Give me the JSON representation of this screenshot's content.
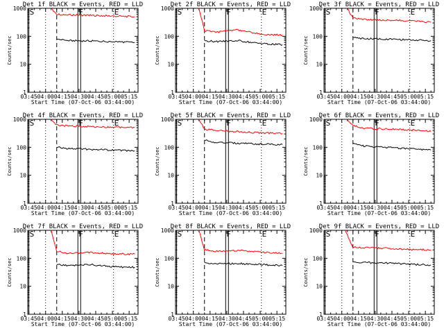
{
  "figure": {
    "background": "#ffffff",
    "event_color": "#000000",
    "lld_color": "#ff0000"
  },
  "chart_data": [
    {
      "type": "line",
      "title": "Det 1f BLACK = Events, RED = LLD",
      "xlabel": "Start Time (07-Oct-06 03:44:00)",
      "ylabel": "Counts/sec",
      "yscale": "log",
      "ylim": [
        1,
        1000
      ],
      "x_ticks": [
        "03:45",
        "04:00",
        "04:15",
        "04:30",
        "04:45",
        "05:00",
        "05:15"
      ],
      "y_ticks": [
        "1",
        "10",
        "100",
        "1000"
      ],
      "markers": [
        {
          "label": "S",
          "time": "03:45",
          "style": "solid"
        },
        {
          "label": "",
          "time": "04:00",
          "style": "dotted"
        },
        {
          "label": "",
          "time": "04:10",
          "style": "dashed"
        },
        {
          "label": "F",
          "time": "04:29",
          "style": "double"
        },
        {
          "label": "E",
          "time": "05:01",
          "style": "dotted"
        }
      ],
      "series": [
        {
          "name": "LLD",
          "color": "#ff0000",
          "x": [
            "04:05",
            "04:10",
            "04:20",
            "04:40",
            "05:00",
            "05:20"
          ],
          "values": [
            1000,
            620,
            590,
            560,
            530,
            500
          ]
        },
        {
          "name": "Events",
          "color": "#000000",
          "x": [
            "04:10",
            "04:20",
            "04:40",
            "05:00",
            "05:20"
          ],
          "values": [
            80,
            70,
            68,
            65,
            60
          ]
        }
      ]
    },
    {
      "type": "line",
      "title": "Det 2f BLACK = Events, RED = LLD",
      "xlabel": "Start Time (07-Oct-06 03:44:00)",
      "ylabel": "Counts/sec",
      "yscale": "log",
      "ylim": [
        1,
        1000
      ],
      "x_ticks": [
        "03:45",
        "04:00",
        "04:15",
        "04:30",
        "04:45",
        "05:00",
        "05:15"
      ],
      "y_ticks": [
        "1",
        "10",
        "100",
        "1000"
      ],
      "markers": [
        {
          "label": "S",
          "time": "03:45",
          "style": "solid"
        },
        {
          "label": "",
          "time": "04:00",
          "style": "dotted"
        },
        {
          "label": "",
          "time": "04:10",
          "style": "dashed"
        },
        {
          "label": "F",
          "time": "04:29",
          "style": "double"
        },
        {
          "label": "E",
          "time": "05:01",
          "style": "dotted"
        }
      ],
      "series": [
        {
          "name": "LLD",
          "color": "#ff0000",
          "x": [
            "04:05",
            "04:10",
            "04:20",
            "04:40",
            "05:00",
            "05:20"
          ],
          "values": [
            1000,
            160,
            140,
            170,
            120,
            110
          ]
        },
        {
          "name": "Events",
          "color": "#000000",
          "x": [
            "04:10",
            "04:20",
            "04:40",
            "05:00",
            "05:20"
          ],
          "values": [
            70,
            65,
            70,
            55,
            50
          ]
        }
      ]
    },
    {
      "type": "line",
      "title": "Det 3f BLACK = Events, RED = LLD",
      "xlabel": "Start Time (07-Oct-06 03:44:00)",
      "ylabel": "Counts/sec",
      "yscale": "log",
      "ylim": [
        1,
        1000
      ],
      "x_ticks": [
        "03:45",
        "04:00",
        "04:15",
        "04:30",
        "04:45",
        "05:00",
        "05:15"
      ],
      "y_ticks": [
        "1",
        "10",
        "100",
        "1000"
      ],
      "markers": [
        {
          "label": "S",
          "time": "03:45",
          "style": "solid"
        },
        {
          "label": "",
          "time": "04:00",
          "style": "dotted"
        },
        {
          "label": "",
          "time": "04:10",
          "style": "dashed"
        },
        {
          "label": "F",
          "time": "04:29",
          "style": "double"
        },
        {
          "label": "E",
          "time": "05:01",
          "style": "dotted"
        }
      ],
      "series": [
        {
          "name": "LLD",
          "color": "#ff0000",
          "x": [
            "04:05",
            "04:10",
            "04:20",
            "04:40",
            "05:00",
            "05:20"
          ],
          "values": [
            1000,
            450,
            400,
            380,
            360,
            320
          ]
        },
        {
          "name": "Events",
          "color": "#000000",
          "x": [
            "04:10",
            "04:20",
            "04:40",
            "05:00",
            "05:20"
          ],
          "values": [
            90,
            82,
            80,
            75,
            70
          ]
        }
      ]
    },
    {
      "type": "line",
      "title": "Det 4f BLACK = Events, RED = LLD",
      "xlabel": "Start Time (07-Oct-06 03:44:00)",
      "ylabel": "Counts/sec",
      "yscale": "log",
      "ylim": [
        1,
        1000
      ],
      "x_ticks": [
        "03:45",
        "04:00",
        "04:15",
        "04:30",
        "04:45",
        "05:00",
        "05:15"
      ],
      "y_ticks": [
        "1",
        "10",
        "100",
        "1000"
      ],
      "markers": [
        {
          "label": "S",
          "time": "03:45",
          "style": "solid"
        },
        {
          "label": "",
          "time": "04:00",
          "style": "dotted"
        },
        {
          "label": "",
          "time": "04:10",
          "style": "dashed"
        },
        {
          "label": "F",
          "time": "04:29",
          "style": "double"
        },
        {
          "label": "E",
          "time": "05:01",
          "style": "dotted"
        }
      ],
      "series": [
        {
          "name": "LLD",
          "color": "#ff0000",
          "x": [
            "04:05",
            "04:10",
            "04:20",
            "04:40",
            "05:00",
            "05:20"
          ],
          "values": [
            1000,
            620,
            580,
            550,
            520,
            500
          ]
        },
        {
          "name": "Events",
          "color": "#000000",
          "x": [
            "04:10",
            "04:20",
            "04:40",
            "05:00",
            "05:20"
          ],
          "values": [
            100,
            90,
            85,
            80,
            75
          ]
        }
      ]
    },
    {
      "type": "line",
      "title": "Det 5f BLACK = Events, RED = LLD",
      "xlabel": "Start Time (07-Oct-06 03:44:00)",
      "ylabel": "Counts/sec",
      "yscale": "log",
      "ylim": [
        1,
        1000
      ],
      "x_ticks": [
        "03:45",
        "04:00",
        "04:15",
        "04:30",
        "04:45",
        "05:00",
        "05:15"
      ],
      "y_ticks": [
        "1",
        "10",
        "100",
        "1000"
      ],
      "markers": [
        {
          "label": "S",
          "time": "03:45",
          "style": "solid"
        },
        {
          "label": "",
          "time": "04:00",
          "style": "dotted"
        },
        {
          "label": "",
          "time": "04:10",
          "style": "dashed"
        },
        {
          "label": "F",
          "time": "04:29",
          "style": "double"
        },
        {
          "label": "E",
          "time": "05:01",
          "style": "dotted"
        }
      ],
      "series": [
        {
          "name": "LLD",
          "color": "#ff0000",
          "x": [
            "04:05",
            "04:10",
            "04:20",
            "04:40",
            "05:00",
            "05:20"
          ],
          "values": [
            1000,
            440,
            400,
            360,
            330,
            310
          ]
        },
        {
          "name": "Events",
          "color": "#000000",
          "x": [
            "04:10",
            "04:20",
            "04:40",
            "05:00",
            "05:20"
          ],
          "values": [
            180,
            150,
            140,
            130,
            125
          ]
        }
      ]
    },
    {
      "type": "line",
      "title": "Det 6f BLACK = Events, RED = LLD",
      "xlabel": "Start Time (07-Oct-06 03:44:00)",
      "ylabel": "Counts/sec",
      "yscale": "log",
      "ylim": [
        1,
        1000
      ],
      "x_ticks": [
        "03:45",
        "04:00",
        "04:15",
        "04:30",
        "04:45",
        "05:00",
        "05:15"
      ],
      "y_ticks": [
        "1",
        "10",
        "100",
        "1000"
      ],
      "markers": [
        {
          "label": "S",
          "time": "03:45",
          "style": "solid"
        },
        {
          "label": "",
          "time": "04:00",
          "style": "dotted"
        },
        {
          "label": "",
          "time": "04:10",
          "style": "dashed"
        },
        {
          "label": "F",
          "time": "04:29",
          "style": "double"
        },
        {
          "label": "E",
          "time": "05:01",
          "style": "dotted"
        }
      ],
      "series": [
        {
          "name": "LLD",
          "color": "#ff0000",
          "x": [
            "04:05",
            "04:10",
            "04:20",
            "04:40",
            "05:00",
            "05:20"
          ],
          "values": [
            1000,
            600,
            480,
            450,
            420,
            370
          ]
        },
        {
          "name": "Events",
          "color": "#000000",
          "x": [
            "04:10",
            "04:20",
            "04:40",
            "05:00",
            "05:20"
          ],
          "values": [
            140,
            110,
            100,
            90,
            80
          ]
        }
      ]
    },
    {
      "type": "line",
      "title": "Det 7f BLACK = Events, RED = LLD",
      "xlabel": "Start Time (07-Oct-06 03:44:00)",
      "ylabel": "Counts/sec",
      "yscale": "log",
      "ylim": [
        1,
        1000
      ],
      "x_ticks": [
        "03:45",
        "04:00",
        "04:15",
        "04:30",
        "04:45",
        "05:00",
        "05:15"
      ],
      "y_ticks": [
        "1",
        "10",
        "100",
        "1000"
      ],
      "markers": [
        {
          "label": "S",
          "time": "03:45",
          "style": "solid"
        },
        {
          "label": "",
          "time": "04:00",
          "style": "dotted"
        },
        {
          "label": "",
          "time": "04:10",
          "style": "dashed"
        },
        {
          "label": "F",
          "time": "04:29",
          "style": "double"
        },
        {
          "label": "E",
          "time": "05:01",
          "style": "dotted"
        }
      ],
      "series": [
        {
          "name": "LLD",
          "color": "#ff0000",
          "x": [
            "04:05",
            "04:10",
            "04:20",
            "04:40",
            "05:00",
            "05:20"
          ],
          "values": [
            1000,
            180,
            150,
            160,
            145,
            140
          ]
        },
        {
          "name": "Events",
          "color": "#000000",
          "x": [
            "04:10",
            "04:20",
            "04:40",
            "05:00",
            "05:20"
          ],
          "values": [
            60,
            55,
            60,
            50,
            48
          ]
        }
      ]
    },
    {
      "type": "line",
      "title": "Det 8f BLACK = Events, RED = LLD",
      "xlabel": "Start Time (07-Oct-06 03:44:00)",
      "ylabel": "Counts/sec",
      "yscale": "log",
      "ylim": [
        1,
        1000
      ],
      "x_ticks": [
        "03:45",
        "04:00",
        "04:15",
        "04:30",
        "04:45",
        "05:00",
        "05:15"
      ],
      "y_ticks": [
        "1",
        "10",
        "100",
        "1000"
      ],
      "markers": [
        {
          "label": "S",
          "time": "03:45",
          "style": "solid"
        },
        {
          "label": "",
          "time": "04:00",
          "style": "dotted"
        },
        {
          "label": "",
          "time": "04:10",
          "style": "dashed"
        },
        {
          "label": "F",
          "time": "04:29",
          "style": "double"
        },
        {
          "label": "E",
          "time": "05:01",
          "style": "dotted"
        }
      ],
      "series": [
        {
          "name": "LLD",
          "color": "#ff0000",
          "x": [
            "04:05",
            "04:10",
            "04:20",
            "04:40",
            "05:00",
            "05:20"
          ],
          "values": [
            1000,
            200,
            180,
            190,
            170,
            150
          ]
        },
        {
          "name": "Events",
          "color": "#000000",
          "x": [
            "04:10",
            "04:20",
            "04:40",
            "05:00",
            "05:20"
          ],
          "values": [
            70,
            65,
            65,
            60,
            55
          ]
        }
      ]
    },
    {
      "type": "line",
      "title": "Det 9f BLACK = Events, RED = LLD",
      "xlabel": "Start Time (07-Oct-06 03:44:00)",
      "ylabel": "Counts/sec",
      "yscale": "log",
      "ylim": [
        1,
        1000
      ],
      "x_ticks": [
        "03:45",
        "04:00",
        "04:15",
        "04:30",
        "04:45",
        "05:00",
        "05:15"
      ],
      "y_ticks": [
        "1",
        "10",
        "100",
        "1000"
      ],
      "markers": [
        {
          "label": "S",
          "time": "03:45",
          "style": "solid"
        },
        {
          "label": "",
          "time": "04:00",
          "style": "dotted"
        },
        {
          "label": "",
          "time": "04:10",
          "style": "dashed"
        },
        {
          "label": "F",
          "time": "04:29",
          "style": "double"
        },
        {
          "label": "E",
          "time": "05:01",
          "style": "dotted"
        }
      ],
      "series": [
        {
          "name": "LLD",
          "color": "#ff0000",
          "x": [
            "04:03",
            "04:10",
            "04:20",
            "04:40",
            "05:00",
            "05:20"
          ],
          "values": [
            1000,
            250,
            240,
            230,
            210,
            200
          ]
        },
        {
          "name": "Events",
          "color": "#000000",
          "x": [
            "04:10",
            "04:20",
            "04:40",
            "05:00",
            "05:20"
          ],
          "values": [
            75,
            70,
            68,
            62,
            58
          ]
        }
      ]
    }
  ]
}
